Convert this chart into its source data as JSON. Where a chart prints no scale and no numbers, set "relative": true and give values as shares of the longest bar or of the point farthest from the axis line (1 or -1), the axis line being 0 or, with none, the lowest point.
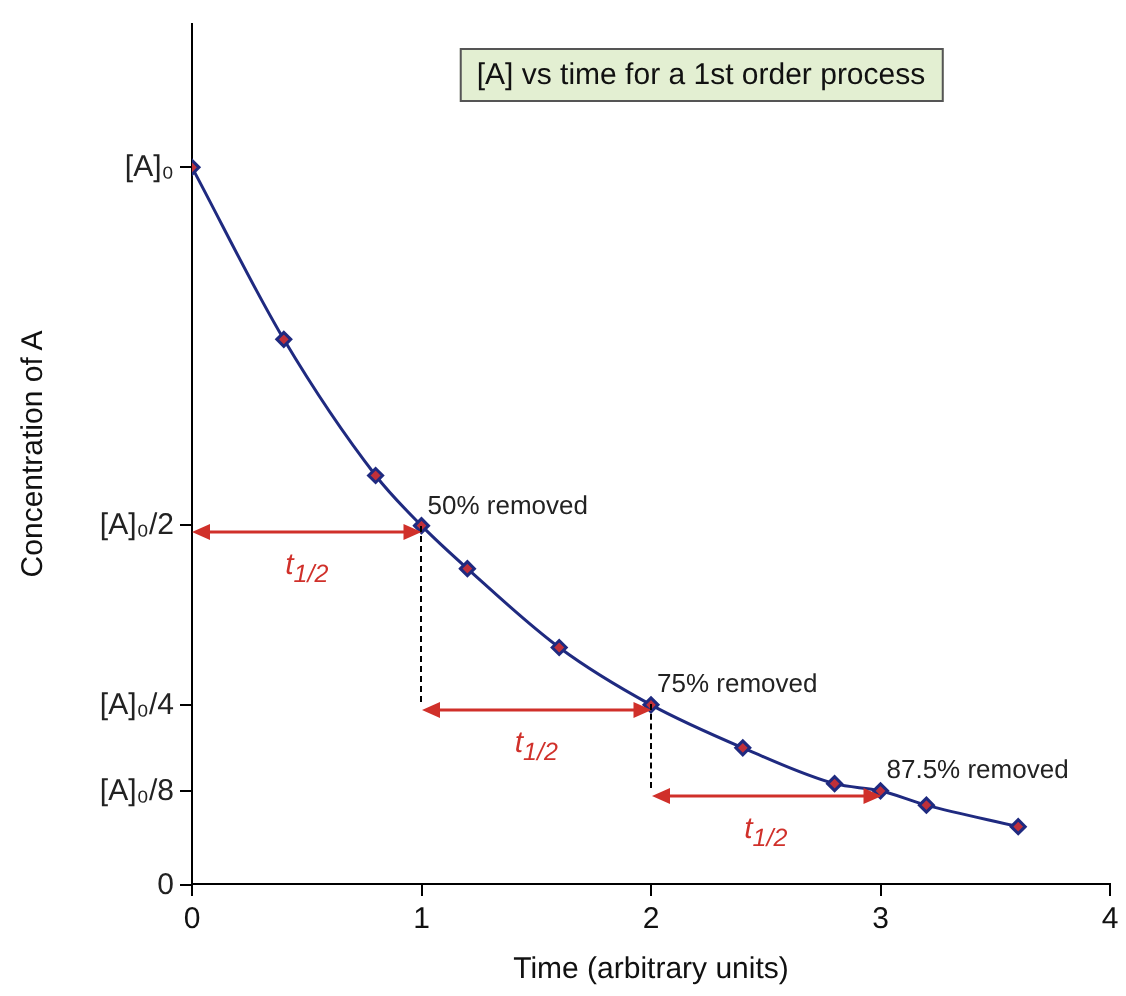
{
  "chart_data": {
    "type": "line",
    "title": "[A] vs time for a 1st order process",
    "xlabel": "Time (arbitrary units)",
    "ylabel": "Concentration of A",
    "x": [
      0,
      0.4,
      0.8,
      1,
      1.2,
      1.6,
      2,
      2.4,
      2.8,
      3,
      3.2,
      3.6
    ],
    "series": [
      {
        "color": "#1f2a80",
        "values": [
          1,
          0.76,
          0.57,
          0.5,
          0.44,
          0.33,
          0.25,
          0.19,
          0.14,
          0.13,
          0.11,
          0.08
        ]
      }
    ],
    "xlim": [
      0,
      4
    ],
    "xticks": [
      0,
      1,
      2,
      3,
      4
    ],
    "relative": true,
    "marker": "diamond",
    "grid": false,
    "legend": false,
    "annotations": [
      "[A]₀",
      "[A]₀/2",
      "[A]₀/4",
      "[A]₀/8",
      "0",
      {
        "text": "50% removed",
        "x": 1,
        "y": 0.5
      },
      {
        "text": "75% removed",
        "x": 2,
        "y": 0.25
      },
      {
        "text": "87.5% removed",
        "x": 3,
        "y": 0.13
      },
      "t$_{1/2}$",
      "t$_{1/2}$",
      "t$_{1/2}$"
    ]
  }
}
